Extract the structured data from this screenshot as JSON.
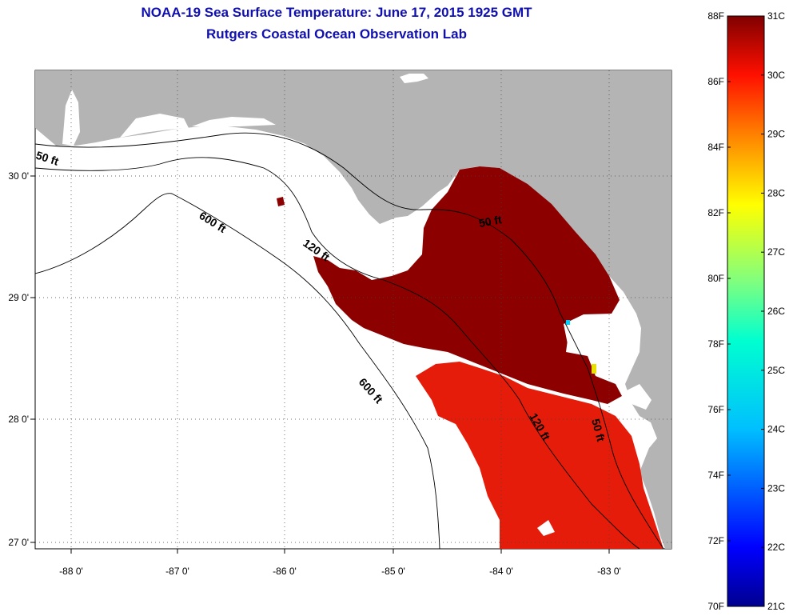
{
  "header": {
    "title": "NOAA-19 Sea Surface Temperature:  June 17, 2015 1925 GMT",
    "subtitle": "Rutgers Coastal Ocean Observation Lab"
  },
  "map": {
    "lon_ticks": [
      "-88 0'",
      "-87 0'",
      "-86 0'",
      "-85 0'",
      "-84 0'",
      "-83 0'"
    ],
    "lat_ticks": [
      "30 0'",
      "29 0'",
      "28 0'",
      "27 0'"
    ],
    "contours": {
      "c50_west": "50 ft",
      "c600_north": "600 ft",
      "c120_north": "120 ft",
      "c50_east": "50 ft",
      "c600_south": "600 ft",
      "c120_south": "120 ft",
      "c50_south": "50 ft"
    },
    "colors": {
      "land": "#b4b4b4",
      "ocean": "#ffffff",
      "hot": "#8b0000",
      "warm": "#e81a00"
    }
  },
  "colorbar": {
    "fahrenheit": [
      "88F",
      "86F",
      "84F",
      "82F",
      "80F",
      "78F",
      "76F",
      "74F",
      "72F",
      "70F"
    ],
    "celsius": [
      "31C",
      "30C",
      "29C",
      "28C",
      "27C",
      "26C",
      "25C",
      "24C",
      "23C",
      "22C",
      "21C"
    ],
    "min_f": 70,
    "max_f": 88,
    "min_c": 21,
    "max_c": 31
  }
}
